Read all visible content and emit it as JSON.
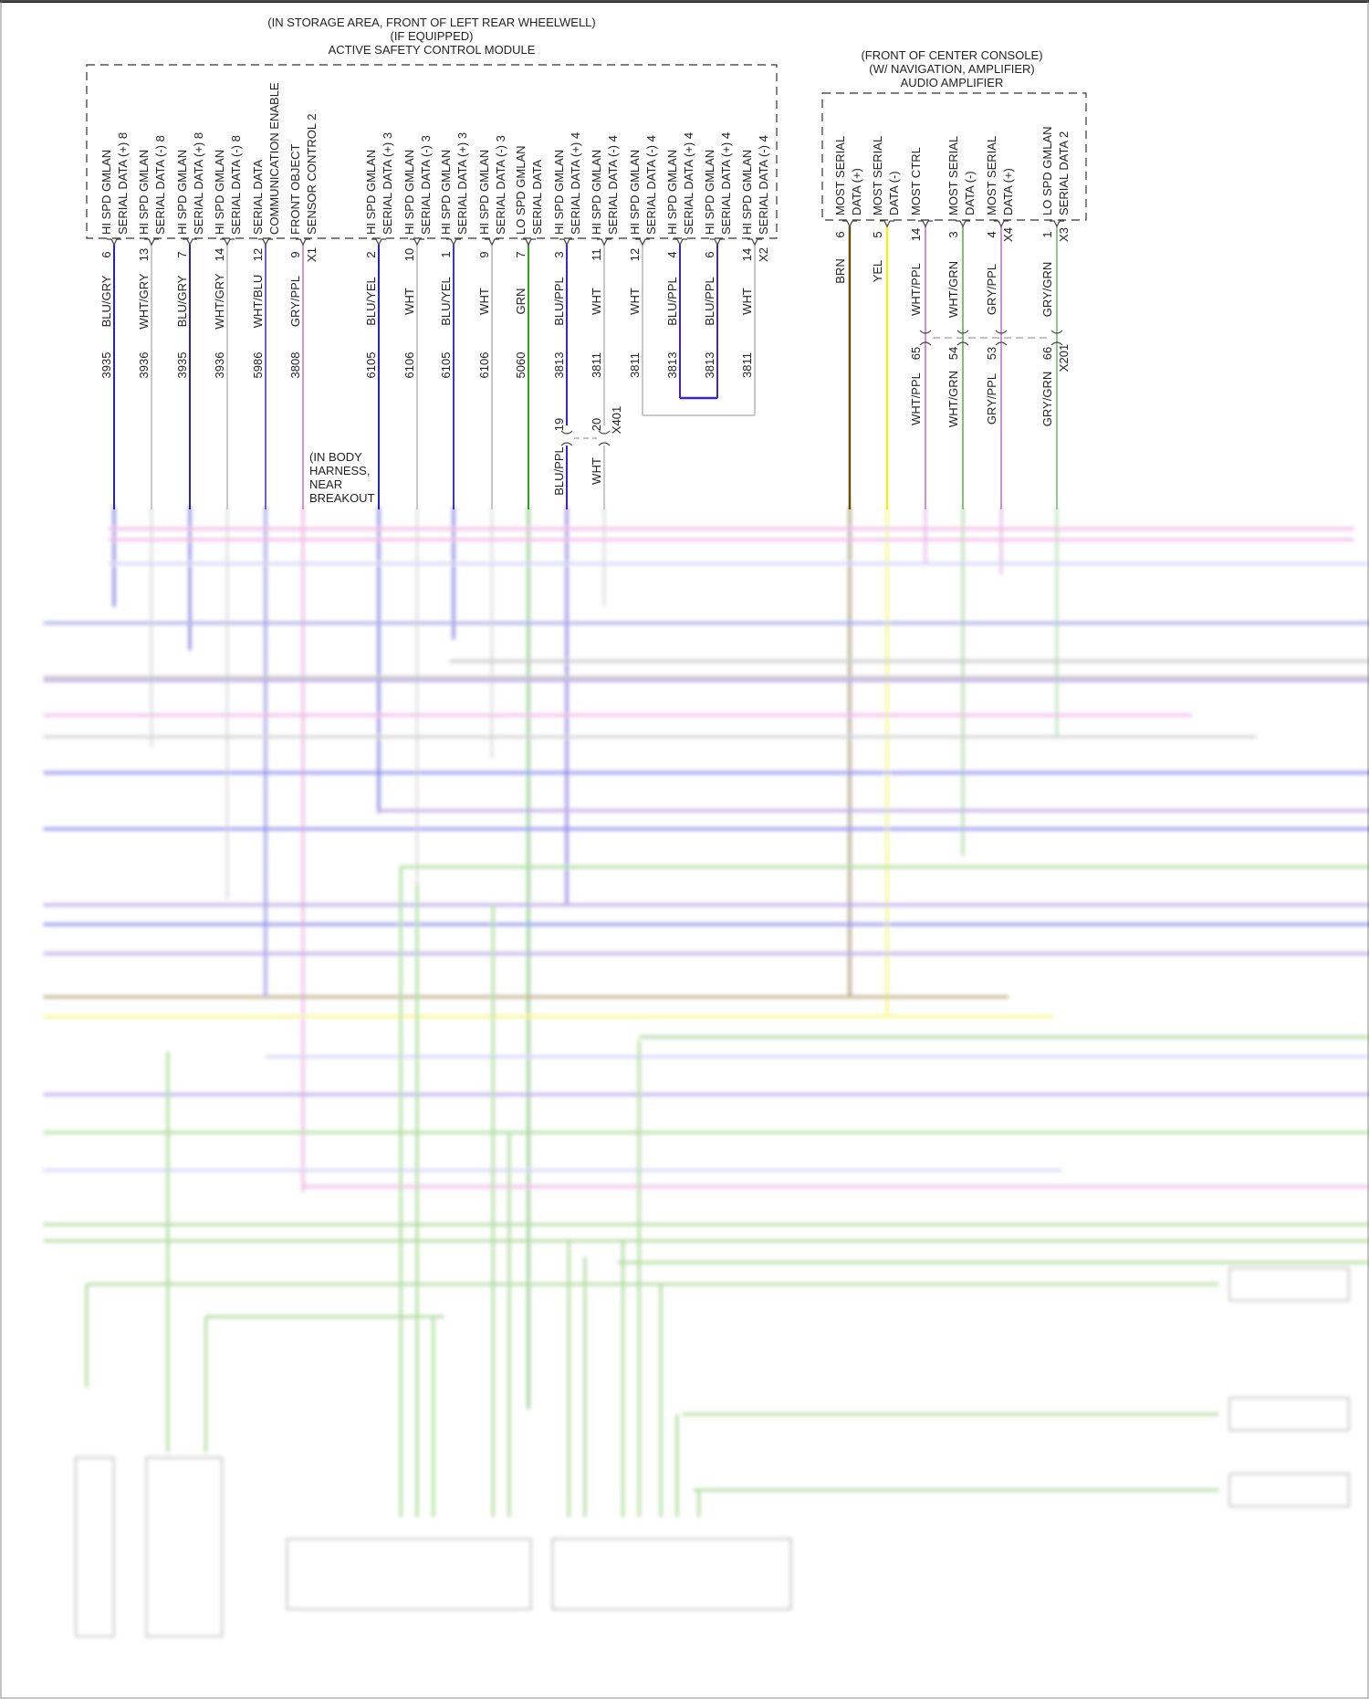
{
  "modules": [
    {
      "id": "active-safety-control-module",
      "title_lines": [
        "(IN STORAGE AREA, FRONT OF LEFT REAR WHEELWELL)",
        "(IF EQUIPPED)",
        "ACTIVE SAFETY CONTROL MODULE"
      ],
      "connectors": [
        "X1",
        "X2"
      ],
      "pins": [
        {
          "label": [
            "HI SPD GMLAN",
            "SERIAL DATA (+) 8"
          ],
          "pin": "6",
          "wire": "BLU/GRY",
          "circuit": "3935",
          "color": "#2222c8"
        },
        {
          "label": [
            "HI SPD GMLAN",
            "SERIAL DATA (-) 8"
          ],
          "pin": "13",
          "wire": "WHT/GRY",
          "circuit": "3936",
          "color": "#c8c8c8"
        },
        {
          "label": [
            "HI SPD GMLAN",
            "SERIAL DATA (+) 8"
          ],
          "pin": "7",
          "wire": "BLU/GRY",
          "circuit": "3935",
          "color": "#2222c8"
        },
        {
          "label": [
            "HI SPD GMLAN",
            "SERIAL DATA (-) 8"
          ],
          "pin": "14",
          "wire": "WHT/GRY",
          "circuit": "3936",
          "color": "#c8c8c8"
        },
        {
          "label": [
            "SERIAL DATA",
            "COMMUNICATION ENABLE"
          ],
          "pin": "12",
          "wire": "WHT/BLU",
          "circuit": "5986",
          "color": "#5050d8"
        },
        {
          "label": [
            "FRONT OBJECT",
            "SENSOR CONTROL 2"
          ],
          "pin": "9",
          "wire": "GRY/PPL",
          "circuit": "3808",
          "color": "#e080d0"
        },
        {
          "label": [
            "HI SPD GMLAN",
            "SERIAL DATA (+) 3"
          ],
          "pin": "2",
          "wire": "BLU/YEL",
          "circuit": "6105",
          "color": "#2222c8"
        },
        {
          "label": [
            "HI SPD GMLAN",
            "SERIAL DATA (-) 3"
          ],
          "pin": "10",
          "wire": "WHT",
          "circuit": "6106",
          "color": "#c8c8c8"
        },
        {
          "label": [
            "HI SPD GMLAN",
            "SERIAL DATA (+) 3"
          ],
          "pin": "1",
          "wire": "BLU/YEL",
          "circuit": "6105",
          "color": "#2222c8"
        },
        {
          "label": [
            "HI SPD GMLAN",
            "SERIAL DATA (-) 3"
          ],
          "pin": "9",
          "wire": "WHT",
          "circuit": "6106",
          "color": "#c8c8c8"
        },
        {
          "label": [
            "LO SPD GMLAN",
            "SERIAL DATA"
          ],
          "pin": "7",
          "wire": "GRN",
          "circuit": "5060",
          "color": "#30a020"
        },
        {
          "label": [
            "HI SPD GMLAN",
            "SERIAL DATA (+) 4"
          ],
          "pin": "3",
          "wire": "BLU/PPL",
          "circuit": "3813",
          "color": "#4020d0"
        },
        {
          "label": [
            "HI SPD GMLAN",
            "SERIAL DATA (-) 4"
          ],
          "pin": "11",
          "wire": "WHT",
          "circuit": "3811",
          "color": "#c8c8c8"
        },
        {
          "label": [
            "HI SPD GMLAN",
            "SERIAL DATA (-) 4"
          ],
          "pin": "12",
          "wire": "WHT",
          "circuit": "3811",
          "color": "#c8c8c8"
        },
        {
          "label": [
            "HI SPD GMLAN",
            "SERIAL DATA (+) 4"
          ],
          "pin": "4",
          "wire": "BLU/PPL",
          "circuit": "3813",
          "color": "#4020d0"
        },
        {
          "label": [
            "HI SPD GMLAN",
            "SERIAL DATA (+) 4"
          ],
          "pin": "6",
          "wire": "BLU/PPL",
          "circuit": "3813",
          "color": "#4020d0"
        },
        {
          "label": [
            "HI SPD GMLAN",
            "SERIAL DATA (-) 4"
          ],
          "pin": "14",
          "wire": "WHT",
          "circuit": "3811",
          "color": "#c8c8c8"
        }
      ]
    },
    {
      "id": "audio-amplifier",
      "title_lines": [
        "(FRONT OF CENTER CONSOLE)",
        "(W/ NAVIGATION, AMPLIFIER)",
        "AUDIO AMPLIFIER"
      ],
      "connectors": [
        "X4",
        "X3"
      ],
      "pins": [
        {
          "label": [
            "MOST SERIAL",
            "DATA (+)"
          ],
          "pin": "6",
          "wire": "BRN",
          "color": "#6b4a10"
        },
        {
          "label": [
            "MOST SERIAL",
            "DATA (-)"
          ],
          "pin": "5",
          "wire": "YEL",
          "color": "#f0f020"
        },
        {
          "label": [
            "MOST CTRL",
            ""
          ],
          "pin": "14",
          "wire": "WHT/PPL",
          "color": "#d090d8",
          "inline_pin": "65",
          "inline_wire": "WHT/PPL"
        },
        {
          "label": [
            "MOST SERIAL",
            "DATA (-)"
          ],
          "pin": "3",
          "wire": "WHT/GRN",
          "color": "#80c070",
          "inline_pin": "54",
          "inline_wire": "WHT/GRN"
        },
        {
          "label": [
            "MOST SERIAL",
            "DATA (+)"
          ],
          "pin": "4",
          "wire": "GRY/PPL",
          "color": "#d090d8",
          "inline_pin": "53",
          "inline_wire": "GRY/PPL"
        },
        {
          "label": [
            "LO SPD GMLAN",
            "SERIAL DATA 2"
          ],
          "pin": "1",
          "wire": "GRY/GRN",
          "color": "#90c890",
          "inline_pin": "66",
          "inline_wire": "GRY/GRN"
        }
      ]
    }
  ],
  "inline_connectors": {
    "x401": {
      "name": "X401",
      "pins": [
        "19",
        "20"
      ],
      "wires": [
        "BLU/PPL",
        "WHT"
      ]
    },
    "x201": {
      "name": "X201"
    }
  },
  "notes": {
    "body_harness": [
      "(IN BODY",
      "HARNESS,",
      "NEAR",
      "BREAKOUT"
    ]
  }
}
